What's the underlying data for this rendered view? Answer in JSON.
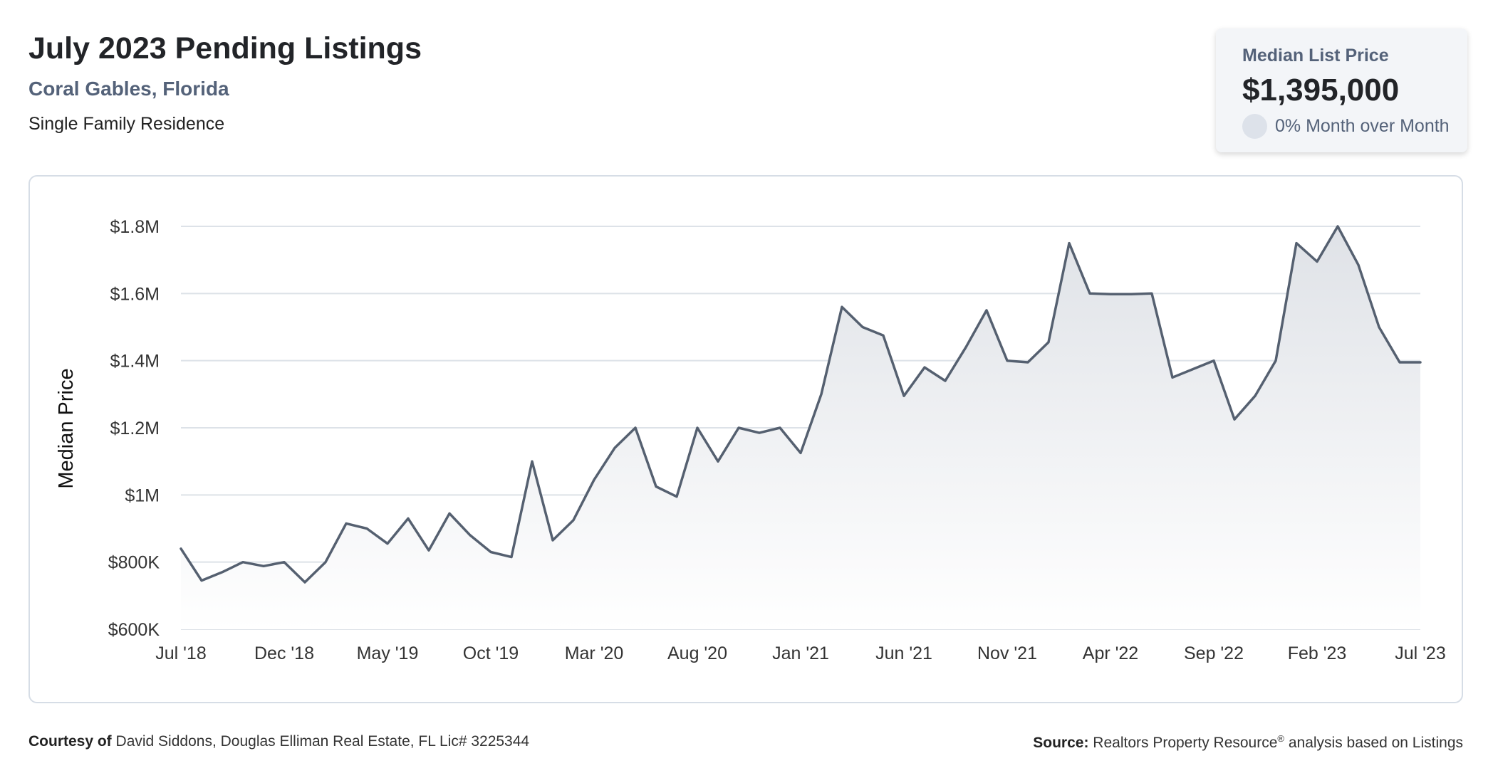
{
  "header": {
    "title": "July 2023 Pending Listings",
    "location": "Coral Gables, Florida",
    "property_type": "Single Family Residence"
  },
  "summary_card": {
    "label": "Median List Price",
    "value": "$1,395,000",
    "change": "0% Month over Month"
  },
  "footer": {
    "courtesy_label": "Courtesy of",
    "courtesy_text": "David Siddons, Douglas Elliman Real Estate, FL Lic# 3225344",
    "source_label": "Source:",
    "source_name": "Realtors Property Resource",
    "source_mark": "®",
    "source_text": "analysis based on Listings"
  },
  "colors": {
    "line": "#556070",
    "fill_top": "#dfe2e7",
    "grid": "#dde2e8",
    "axis_text": "#333333"
  },
  "chart_data": {
    "type": "area",
    "ylabel": "Median Price",
    "ylim": [
      600000,
      1800000
    ],
    "yticks": [
      600000,
      800000,
      1000000,
      1200000,
      1400000,
      1600000,
      1800000
    ],
    "ytick_labels": [
      "$600K",
      "$800K",
      "$1M",
      "$1.2M",
      "$1.4M",
      "$1.6M",
      "$1.8M"
    ],
    "xtick_labels": [
      "Jul '18",
      "Dec '18",
      "May '19",
      "Oct '19",
      "Mar '20",
      "Aug '20",
      "Jan '21",
      "Jun '21",
      "Nov '21",
      "Apr '22",
      "Sep '22",
      "Feb '23",
      "Jul '23"
    ],
    "x": [
      "2018-07",
      "2018-08",
      "2018-09",
      "2018-10",
      "2018-11",
      "2018-12",
      "2019-01",
      "2019-02",
      "2019-03",
      "2019-04",
      "2019-05",
      "2019-06",
      "2019-07",
      "2019-08",
      "2019-09",
      "2019-10",
      "2019-11",
      "2019-12",
      "2020-01",
      "2020-02",
      "2020-03",
      "2020-04",
      "2020-05",
      "2020-06",
      "2020-07",
      "2020-08",
      "2020-09",
      "2020-10",
      "2020-11",
      "2020-12",
      "2021-01",
      "2021-02",
      "2021-03",
      "2021-04",
      "2021-05",
      "2021-06",
      "2021-07",
      "2021-08",
      "2021-09",
      "2021-10",
      "2021-11",
      "2021-12",
      "2022-01",
      "2022-02",
      "2022-03",
      "2022-04",
      "2022-05",
      "2022-06",
      "2022-07",
      "2022-08",
      "2022-09",
      "2022-10",
      "2022-11",
      "2022-12",
      "2023-01",
      "2023-02",
      "2023-03",
      "2023-04",
      "2023-05",
      "2023-06",
      "2023-07"
    ],
    "values": [
      840000,
      745000,
      770000,
      800000,
      788000,
      800000,
      740000,
      800000,
      915000,
      900000,
      855000,
      930000,
      835000,
      945000,
      880000,
      830000,
      815000,
      1100000,
      865000,
      925000,
      1045000,
      1140000,
      1200000,
      1025000,
      995000,
      1200000,
      1100000,
      1200000,
      1185000,
      1200000,
      1125000,
      1300000,
      1560000,
      1500000,
      1475000,
      1295000,
      1380000,
      1340000,
      1440000,
      1550000,
      1400000,
      1395000,
      1455000,
      1750000,
      1600000,
      1598000,
      1598000,
      1600000,
      1350000,
      1375000,
      1400000,
      1225000,
      1295000,
      1400000,
      1750000,
      1695000,
      1800000,
      1685000,
      1500000,
      1395000,
      1395000
    ],
    "series": [
      {
        "values_ref": "values"
      }
    ],
    "grid": true,
    "legend": "none"
  }
}
